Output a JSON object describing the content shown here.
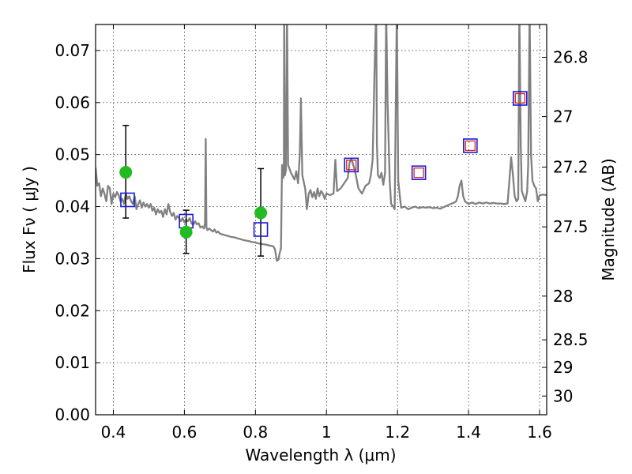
{
  "chart_data": {
    "type": "scatter",
    "xlabel": "Wavelength  λ (μm)",
    "ylabel": "Flux  Fν  ( μJy )",
    "y2label": "Magnitude (AB)",
    "xlim": [
      0.35,
      1.62
    ],
    "ylim": [
      0.0,
      0.075
    ],
    "grid": true,
    "x_ticks": [
      0.4,
      0.6,
      0.8,
      1.0,
      1.2,
      1.4,
      1.6
    ],
    "x_tick_labels": [
      "0.4",
      "0.6",
      "0.8",
      "1",
      "1.2",
      "1.4",
      "1.6"
    ],
    "y_ticks": [
      0.0,
      0.01,
      0.02,
      0.03,
      0.04,
      0.05,
      0.06,
      0.07
    ],
    "y_tick_labels": [
      "0.00",
      "0.01",
      "0.02",
      "0.03",
      "0.04",
      "0.05",
      "0.06",
      "0.07"
    ],
    "y2_ticks": [
      {
        "label": "26.8",
        "flux": 0.0687
      },
      {
        "label": "27",
        "flux": 0.0573
      },
      {
        "label": "27.2",
        "flux": 0.0476
      },
      {
        "label": "27.5",
        "flux": 0.0361
      },
      {
        "label": "28",
        "flux": 0.0228
      },
      {
        "label": "28.5",
        "flux": 0.0144
      },
      {
        "label": "29",
        "flux": 0.0091
      },
      {
        "label": "30",
        "flux": 0.0036
      }
    ],
    "series": [
      {
        "kind": "spectrum",
        "color": "#808080",
        "points": [
          [
            0.35,
            0.0475
          ],
          [
            0.355,
            0.044
          ],
          [
            0.36,
            0.0445
          ],
          [
            0.365,
            0.042
          ],
          [
            0.37,
            0.0435
          ],
          [
            0.375,
            0.0425
          ],
          [
            0.38,
            0.041
          ],
          [
            0.385,
            0.044
          ],
          [
            0.39,
            0.0435
          ],
          [
            0.395,
            0.0405
          ],
          [
            0.4,
            0.0425
          ],
          [
            0.405,
            0.0418
          ],
          [
            0.41,
            0.0428
          ],
          [
            0.415,
            0.0422
          ],
          [
            0.42,
            0.041
          ],
          [
            0.425,
            0.0415
          ],
          [
            0.43,
            0.0405
          ],
          [
            0.435,
            0.0425
          ],
          [
            0.44,
            0.0415
          ],
          [
            0.445,
            0.042
          ],
          [
            0.45,
            0.041
          ],
          [
            0.455,
            0.0405
          ],
          [
            0.46,
            0.042
          ],
          [
            0.465,
            0.0395
          ],
          [
            0.47,
            0.0405
          ],
          [
            0.475,
            0.0412
          ],
          [
            0.48,
            0.0398
          ],
          [
            0.485,
            0.0408
          ],
          [
            0.49,
            0.04
          ],
          [
            0.495,
            0.0405
          ],
          [
            0.5,
            0.0398
          ],
          [
            0.505,
            0.0405
          ],
          [
            0.51,
            0.0392
          ],
          [
            0.515,
            0.0398
          ],
          [
            0.52,
            0.0385
          ],
          [
            0.525,
            0.0395
          ],
          [
            0.53,
            0.0388
          ],
          [
            0.535,
            0.0392
          ],
          [
            0.54,
            0.038
          ],
          [
            0.545,
            0.0395
          ],
          [
            0.55,
            0.0385
          ],
          [
            0.555,
            0.0405
          ],
          [
            0.56,
            0.039
          ],
          [
            0.565,
            0.0382
          ],
          [
            0.57,
            0.0388
          ],
          [
            0.575,
            0.0375
          ],
          [
            0.58,
            0.0382
          ],
          [
            0.585,
            0.0378
          ],
          [
            0.59,
            0.0372
          ],
          [
            0.595,
            0.0378
          ],
          [
            0.6,
            0.037
          ],
          [
            0.605,
            0.0375
          ],
          [
            0.61,
            0.0372
          ],
          [
            0.615,
            0.0378
          ],
          [
            0.62,
            0.0368
          ],
          [
            0.625,
            0.0365
          ],
          [
            0.63,
            0.0372
          ],
          [
            0.635,
            0.0366
          ],
          [
            0.64,
            0.0368
          ],
          [
            0.645,
            0.036
          ],
          [
            0.65,
            0.0362
          ],
          [
            0.655,
            0.0358
          ],
          [
            0.658,
            0.0368
          ],
          [
            0.66,
            0.053
          ],
          [
            0.662,
            0.036
          ],
          [
            0.665,
            0.0355
          ],
          [
            0.67,
            0.0358
          ],
          [
            0.675,
            0.0355
          ],
          [
            0.68,
            0.0352
          ],
          [
            0.685,
            0.0356
          ],
          [
            0.69,
            0.035
          ],
          [
            0.695,
            0.0352
          ],
          [
            0.7,
            0.0348
          ],
          [
            0.71,
            0.0346
          ],
          [
            0.72,
            0.0344
          ],
          [
            0.73,
            0.0342
          ],
          [
            0.74,
            0.0341
          ],
          [
            0.75,
            0.0339
          ],
          [
            0.76,
            0.0337
          ],
          [
            0.77,
            0.0335
          ],
          [
            0.78,
            0.0334
          ],
          [
            0.79,
            0.0332
          ],
          [
            0.8,
            0.0331
          ],
          [
            0.81,
            0.0329
          ],
          [
            0.82,
            0.0328
          ],
          [
            0.83,
            0.0327
          ],
          [
            0.84,
            0.0325
          ],
          [
            0.85,
            0.0324
          ],
          [
            0.855,
            0.0318
          ],
          [
            0.86,
            0.0296
          ],
          [
            0.865,
            0.0298
          ],
          [
            0.868,
            0.031
          ],
          [
            0.872,
            0.032
          ],
          [
            0.875,
            0.048
          ],
          [
            0.878,
            0.0455
          ],
          [
            0.88,
            0.046
          ],
          [
            0.881,
            0.078
          ],
          [
            0.883,
            0.046
          ],
          [
            0.886,
            0.047
          ],
          [
            0.889,
            0.078
          ],
          [
            0.892,
            0.048
          ],
          [
            0.9,
            0.0465
          ],
          [
            0.91,
            0.0452
          ],
          [
            0.915,
            0.0468
          ],
          [
            0.92,
            0.0445
          ],
          [
            0.925,
            0.05
          ],
          [
            0.928,
            0.0608
          ],
          [
            0.932,
            0.046
          ],
          [
            0.94,
            0.0435
          ],
          [
            0.945,
            0.0395
          ],
          [
            0.95,
            0.0425
          ],
          [
            0.955,
            0.0432
          ],
          [
            0.96,
            0.0418
          ],
          [
            0.965,
            0.0428
          ],
          [
            0.97,
            0.0415
          ],
          [
            0.975,
            0.0435
          ],
          [
            0.98,
            0.042
          ],
          [
            0.985,
            0.043
          ],
          [
            0.99,
            0.0425
          ],
          [
            0.995,
            0.0415
          ],
          [
            1.0,
            0.0425
          ],
          [
            1.01,
            0.0422
          ],
          [
            1.02,
            0.0425
          ],
          [
            1.025,
            0.049
          ],
          [
            1.03,
            0.043
          ],
          [
            1.04,
            0.0435
          ],
          [
            1.05,
            0.0445
          ],
          [
            1.06,
            0.0455
          ],
          [
            1.065,
            0.0485
          ],
          [
            1.07,
            0.0492
          ],
          [
            1.08,
            0.047
          ],
          [
            1.09,
            0.0435
          ],
          [
            1.1,
            0.0425
          ],
          [
            1.11,
            0.044
          ],
          [
            1.12,
            0.0445
          ],
          [
            1.125,
            0.046
          ],
          [
            1.13,
            0.049
          ],
          [
            1.135,
            0.065
          ],
          [
            1.14,
            0.078
          ],
          [
            1.142,
            0.052
          ],
          [
            1.145,
            0.046
          ],
          [
            1.15,
            0.0455
          ],
          [
            1.155,
            0.0465
          ],
          [
            1.16,
            0.0442
          ],
          [
            1.165,
            0.0465
          ],
          [
            1.168,
            0.078
          ],
          [
            1.172,
            0.06
          ],
          [
            1.178,
            0.045
          ],
          [
            1.182,
            0.0405
          ],
          [
            1.188,
            0.04
          ],
          [
            1.192,
            0.0395
          ],
          [
            1.195,
            0.058
          ],
          [
            1.198,
            0.078
          ],
          [
            1.202,
            0.045
          ],
          [
            1.21,
            0.0398
          ],
          [
            1.22,
            0.04
          ],
          [
            1.23,
            0.0395
          ],
          [
            1.24,
            0.0398
          ],
          [
            1.25,
            0.04
          ],
          [
            1.26,
            0.0397
          ],
          [
            1.27,
            0.0399
          ],
          [
            1.28,
            0.0398
          ],
          [
            1.29,
            0.0399
          ],
          [
            1.3,
            0.0397
          ],
          [
            1.31,
            0.0398
          ],
          [
            1.32,
            0.0396
          ],
          [
            1.33,
            0.0399
          ],
          [
            1.34,
            0.0402
          ],
          [
            1.35,
            0.0405
          ],
          [
            1.36,
            0.0408
          ],
          [
            1.365,
            0.041
          ],
          [
            1.37,
            0.042
          ],
          [
            1.375,
            0.044
          ],
          [
            1.38,
            0.045
          ],
          [
            1.385,
            0.042
          ],
          [
            1.39,
            0.041
          ],
          [
            1.4,
            0.0405
          ],
          [
            1.41,
            0.0408
          ],
          [
            1.42,
            0.0405
          ],
          [
            1.43,
            0.0408
          ],
          [
            1.44,
            0.0406
          ],
          [
            1.45,
            0.0408
          ],
          [
            1.46,
            0.0406
          ],
          [
            1.47,
            0.0407
          ],
          [
            1.48,
            0.0406
          ],
          [
            1.49,
            0.0406
          ],
          [
            1.5,
            0.0405
          ],
          [
            1.51,
            0.0406
          ],
          [
            1.515,
            0.045
          ],
          [
            1.52,
            0.0495
          ],
          [
            1.525,
            0.046
          ],
          [
            1.53,
            0.042
          ],
          [
            1.535,
            0.041
          ],
          [
            1.54,
            0.0415
          ],
          [
            1.543,
            0.078
          ],
          [
            1.547,
            0.052
          ],
          [
            1.55,
            0.043
          ],
          [
            1.56,
            0.041
          ],
          [
            1.565,
            0.043
          ],
          [
            1.568,
            0.048
          ],
          [
            1.572,
            0.078
          ],
          [
            1.576,
            0.05
          ],
          [
            1.58,
            0.045
          ],
          [
            1.585,
            0.044
          ],
          [
            1.59,
            0.0435
          ],
          [
            1.595,
            0.041
          ],
          [
            1.6,
            0.0422
          ],
          [
            1.61,
            0.0423
          ],
          [
            1.62,
            0.0422
          ]
        ]
      },
      {
        "kind": "errorbar_points",
        "color": "#22bb22",
        "points": [
          {
            "x": 0.435,
            "y": 0.0466,
            "yerr_low": 0.0378,
            "yerr_high": 0.0556
          },
          {
            "x": 0.605,
            "y": 0.0351,
            "yerr_low": 0.031,
            "yerr_high": 0.0393
          },
          {
            "x": 0.815,
            "y": 0.0388,
            "yerr_low": 0.0305,
            "yerr_high": 0.0473
          }
        ]
      },
      {
        "kind": "squares",
        "color": "#1a1adb",
        "points": [
          [
            0.44,
            0.0413
          ],
          [
            0.605,
            0.0372
          ],
          [
            0.815,
            0.0356
          ],
          [
            1.07,
            0.048
          ],
          [
            1.26,
            0.0465
          ],
          [
            1.405,
            0.0517
          ],
          [
            1.545,
            0.0608
          ]
        ]
      },
      {
        "kind": "squares",
        "color": "#dd2222",
        "points": [
          [
            1.07,
            0.048
          ],
          [
            1.26,
            0.0465
          ],
          [
            1.405,
            0.0517
          ],
          [
            1.545,
            0.0608
          ]
        ]
      }
    ]
  }
}
